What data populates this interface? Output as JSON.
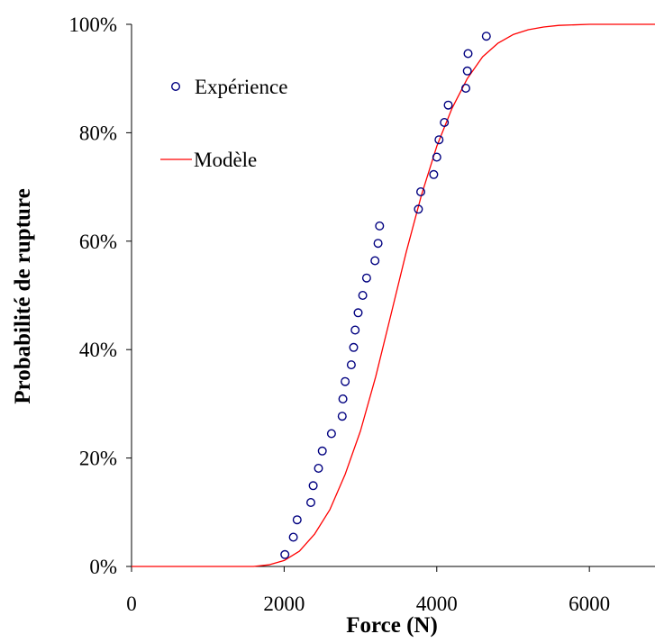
{
  "chart_data": {
    "type": "scatter",
    "xlabel": "Force (N)",
    "ylabel": "Probabilité de rupture",
    "xlim": [
      0,
      6860
    ],
    "ylim": [
      0,
      100
    ],
    "x_ticks": [
      0,
      2000,
      4000,
      6000
    ],
    "x_tick_labels": [
      "0",
      "2000",
      "4000",
      "6000"
    ],
    "y_ticks": [
      0,
      20,
      40,
      60,
      80,
      100
    ],
    "y_tick_labels": [
      "0%",
      "20%",
      "40%",
      "60%",
      "80%",
      "100%"
    ],
    "grid": false,
    "legend_position": "top-left",
    "series": [
      {
        "name": "Expérience",
        "kind": "scatter",
        "marker": "open-circle",
        "color": "#000080",
        "points": [
          [
            2010,
            2.2
          ],
          [
            2120,
            5.4
          ],
          [
            2170,
            8.6
          ],
          [
            2350,
            11.8
          ],
          [
            2380,
            14.9
          ],
          [
            2450,
            18.1
          ],
          [
            2500,
            21.3
          ],
          [
            2620,
            24.5
          ],
          [
            2760,
            27.7
          ],
          [
            2770,
            30.9
          ],
          [
            2800,
            34.1
          ],
          [
            2880,
            37.2
          ],
          [
            2910,
            40.4
          ],
          [
            2930,
            43.6
          ],
          [
            2970,
            46.8
          ],
          [
            3030,
            50.0
          ],
          [
            3080,
            53.2
          ],
          [
            3190,
            56.4
          ],
          [
            3230,
            59.6
          ],
          [
            3250,
            62.8
          ],
          [
            3760,
            65.9
          ],
          [
            3790,
            69.1
          ],
          [
            3960,
            72.3
          ],
          [
            4000,
            75.5
          ],
          [
            4030,
            78.7
          ],
          [
            4100,
            81.9
          ],
          [
            4150,
            85.1
          ],
          [
            4380,
            88.2
          ],
          [
            4400,
            91.4
          ],
          [
            4410,
            94.6
          ],
          [
            4650,
            97.8
          ]
        ]
      },
      {
        "name": "Modèle",
        "kind": "line",
        "color": "#ff0000",
        "points": [
          [
            0,
            0
          ],
          [
            1600,
            0
          ],
          [
            1800,
            0.3
          ],
          [
            2000,
            1.1
          ],
          [
            2200,
            2.8
          ],
          [
            2400,
            6.0
          ],
          [
            2600,
            10.5
          ],
          [
            2800,
            17.0
          ],
          [
            3000,
            25.0
          ],
          [
            3200,
            35.0
          ],
          [
            3400,
            46.5
          ],
          [
            3600,
            58.0
          ],
          [
            3800,
            68.5
          ],
          [
            4000,
            77.5
          ],
          [
            4200,
            84.5
          ],
          [
            4400,
            90.0
          ],
          [
            4600,
            94.0
          ],
          [
            4800,
            96.5
          ],
          [
            5000,
            98.1
          ],
          [
            5200,
            99.0
          ],
          [
            5400,
            99.5
          ],
          [
            5600,
            99.8
          ],
          [
            6000,
            100
          ],
          [
            6860,
            100
          ]
        ]
      }
    ]
  },
  "colors": {
    "scatter": "#000080",
    "model": "#ff0000",
    "axis": "#000000"
  }
}
